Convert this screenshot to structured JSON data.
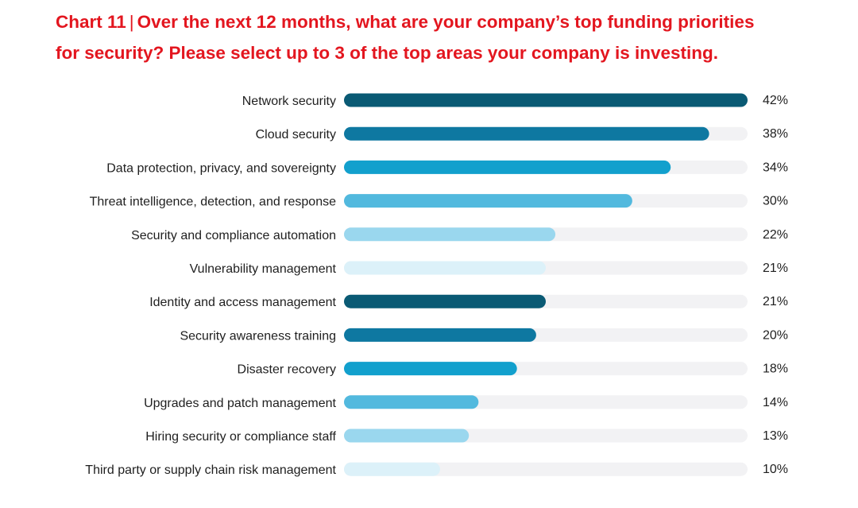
{
  "chart_data": {
    "type": "bar",
    "orientation": "horizontal",
    "title_prefix": "Chart 11",
    "title_separator": "|",
    "title_line1": "Over the next 12 months, what are your company’s top funding priorities",
    "title_line2": "for security? Please select up to 3 of the top areas your company is investing.",
    "xlim": [
      0,
      42
    ],
    "grid": false,
    "categories": [
      "Network security",
      "Cloud security",
      "Data protection, privacy, and sovereignty",
      "Threat intelligence, detection, and response",
      "Security and compliance automation",
      "Vulnerability management",
      "Identity and access management",
      "Security awareness training",
      "Disaster recovery",
      "Upgrades and patch management",
      "Hiring security or compliance staff",
      "Third party or supply chain risk management"
    ],
    "values": [
      42,
      38,
      34,
      30,
      22,
      21,
      21,
      20,
      18,
      14,
      13,
      10
    ],
    "value_labels": [
      "42%",
      "38%",
      "34%",
      "30%",
      "22%",
      "21%",
      "21%",
      "20%",
      "18%",
      "14%",
      "13%",
      "10%"
    ],
    "bar_colors": [
      "#0a5a74",
      "#0e78a1",
      "#12a0cd",
      "#52b9de",
      "#9ad7ee",
      "#dcf1f9",
      "#0a5a74",
      "#0e78a1",
      "#12a0cd",
      "#52b9de",
      "#9ad7ee",
      "#dcf1f9"
    ],
    "track_color": "#f2f2f4",
    "title_color": "#e3161f"
  }
}
